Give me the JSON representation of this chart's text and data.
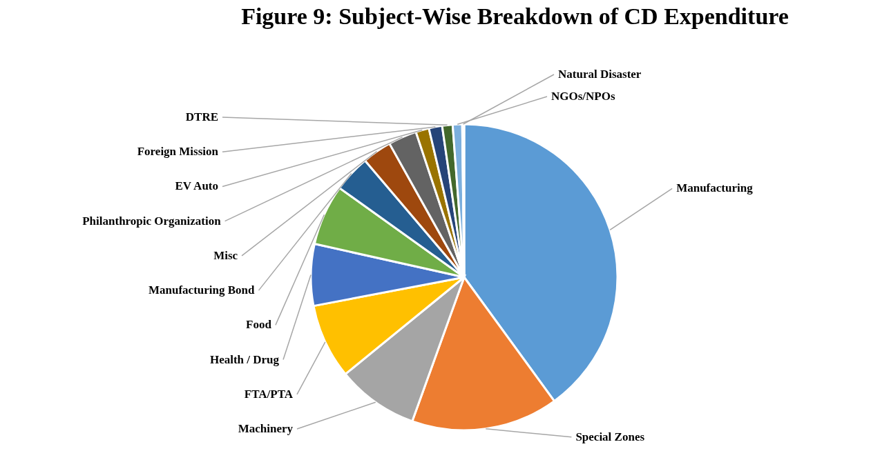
{
  "chart_data": {
    "type": "pie",
    "title": "Figure 9: Subject-Wise Breakdown of CD Expenditure",
    "categories": [
      "Manufacturing",
      "Special Zones",
      "Machinery",
      "FTA/PTA",
      "Health / Drug",
      "Food",
      "Manufacturing Bond",
      "Misc",
      "Philanthropic Organization",
      "EV Auto",
      "Foreign Mission",
      "DTRE",
      "NGOs/NPOs",
      "Natural Disaster"
    ],
    "values": [
      40,
      15.5,
      8.6,
      7.9,
      6.5,
      6.4,
      3.9,
      3.1,
      3.0,
      1.4,
      1.4,
      1.1,
      1.0,
      0.2
    ],
    "colors": [
      "#5b9bd5",
      "#ed7d31",
      "#a5a5a5",
      "#ffc000",
      "#4472c4",
      "#70ad47",
      "#255e91",
      "#9e480e",
      "#636363",
      "#997300",
      "#264478",
      "#43682b",
      "#7cafdd",
      "#f1975a"
    ]
  }
}
